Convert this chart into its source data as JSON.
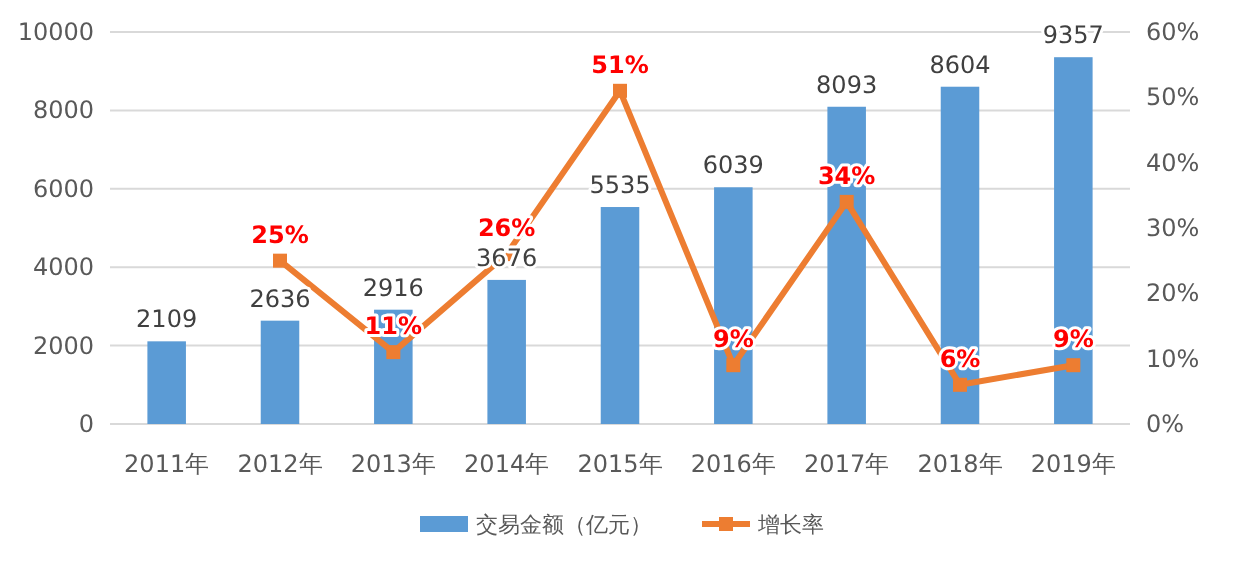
{
  "chart_data": {
    "type": "bar",
    "categories": [
      "2011年",
      "2012年",
      "2013年",
      "2014年",
      "2015年",
      "2016年",
      "2017年",
      "2018年",
      "2019年"
    ],
    "series": [
      {
        "name": "交易金额（亿元）",
        "color": "#5b9bd5",
        "values": [
          2109,
          2636,
          2916,
          3676,
          5535,
          6039,
          8093,
          8604,
          9357
        ],
        "value_labels": [
          "2109",
          "2636",
          "2916",
          "3676",
          "5535",
          "6039",
          "8093",
          "8604",
          "9357"
        ]
      },
      {
        "name": "增长率",
        "type": "line",
        "axis": "y2",
        "color": "#ed7d31",
        "marker": "square",
        "values": [
          null,
          25,
          11,
          26,
          51,
          9,
          34,
          6,
          9
        ],
        "value_labels": [
          null,
          "25%",
          "11%",
          "26%",
          "51%",
          "9%",
          "34%",
          "6%",
          "9%"
        ]
      }
    ],
    "ylim": [
      0,
      10000
    ],
    "yticks": [
      0,
      2000,
      4000,
      6000,
      8000,
      10000
    ],
    "y2lim": [
      0,
      60
    ],
    "y2ticks": [
      {
        "value": 0,
        "label": "0%"
      },
      {
        "value": 10,
        "label": "10%"
      },
      {
        "value": 20,
        "label": "20%"
      },
      {
        "value": 30,
        "label": "30%"
      },
      {
        "value": 40,
        "label": "40%"
      },
      {
        "value": 50,
        "label": "50%"
      },
      {
        "value": 60,
        "label": "60%"
      }
    ],
    "grid": "y",
    "legend": "bottom"
  }
}
